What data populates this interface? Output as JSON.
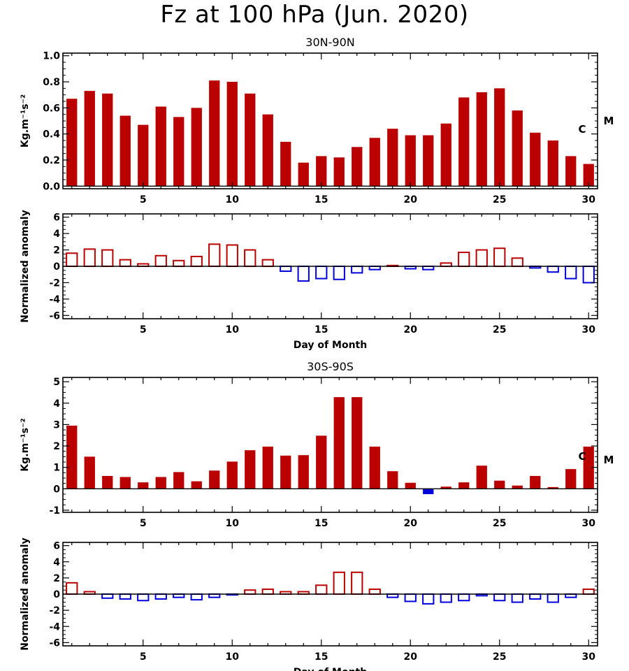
{
  "title": "Fz at 100 hPa (Jun. 2020)",
  "colors": {
    "positive": "#bb0000",
    "negative": "#0000dd",
    "axis": "#000000"
  },
  "chart_data": [
    {
      "type": "bar",
      "title": "30N-90N",
      "xlabel": "",
      "ylabel": "Kg.m⁻¹s⁻²",
      "xlim": [
        0.5,
        30.5
      ],
      "ylim": [
        -0.02,
        1.02
      ],
      "yticks": [
        "0.0",
        "0.2",
        "0.4",
        "0.6",
        "0.8",
        "1.0"
      ],
      "xticks": [
        "5",
        "10",
        "15",
        "20",
        "25",
        "30"
      ],
      "bar_style": "filled",
      "annotations": [
        "C",
        "M"
      ],
      "x": [
        1,
        2,
        3,
        4,
        5,
        6,
        7,
        8,
        9,
        10,
        11,
        12,
        13,
        14,
        15,
        16,
        17,
        18,
        19,
        20,
        21,
        22,
        23,
        24,
        25,
        26,
        27,
        28,
        29,
        30
      ],
      "values": [
        0.67,
        0.73,
        0.71,
        0.54,
        0.47,
        0.61,
        0.53,
        0.6,
        0.81,
        0.8,
        0.71,
        0.55,
        0.34,
        0.18,
        0.23,
        0.22,
        0.3,
        0.37,
        0.44,
        0.39,
        0.39,
        0.48,
        0.68,
        0.72,
        0.75,
        0.58,
        0.41,
        0.35,
        0.23,
        0.17
      ]
    },
    {
      "type": "bar",
      "title": "",
      "xlabel": "Day of Month",
      "ylabel": "Normalized anomaly",
      "xlim": [
        0.5,
        30.5
      ],
      "ylim": [
        -6.4,
        6.4
      ],
      "yticks": [
        "-6",
        "-4",
        "-2",
        "0",
        "2",
        "4",
        "6"
      ],
      "xticks": [
        "5",
        "10",
        "15",
        "20",
        "25",
        "30"
      ],
      "bar_style": "outline",
      "x": [
        1,
        2,
        3,
        4,
        5,
        6,
        7,
        8,
        9,
        10,
        11,
        12,
        13,
        14,
        15,
        16,
        17,
        18,
        19,
        20,
        21,
        22,
        23,
        24,
        25,
        26,
        27,
        28,
        29,
        30
      ],
      "values": [
        1.6,
        2.1,
        2.0,
        0.8,
        0.3,
        1.3,
        0.7,
        1.2,
        2.7,
        2.6,
        2.0,
        0.8,
        -0.6,
        -1.8,
        -1.5,
        -1.6,
        -0.8,
        -0.4,
        0.1,
        -0.3,
        -0.4,
        0.4,
        1.7,
        2.0,
        2.2,
        1.0,
        -0.2,
        -0.7,
        -1.5,
        -2.0
      ]
    },
    {
      "type": "bar",
      "title": "30S-90S",
      "xlabel": "",
      "ylabel": "Kg.m⁻¹s⁻²",
      "xlim": [
        0.5,
        30.5
      ],
      "ylim": [
        -1.1,
        5.2
      ],
      "yticks": [
        "-1",
        "0",
        "1",
        "2",
        "3",
        "4",
        "5"
      ],
      "xticks": [
        "5",
        "10",
        "15",
        "20",
        "25",
        "30"
      ],
      "bar_style": "filled",
      "annotations": [
        "C",
        "M"
      ],
      "x": [
        1,
        2,
        3,
        4,
        5,
        6,
        7,
        8,
        9,
        10,
        11,
        12,
        13,
        14,
        15,
        16,
        17,
        18,
        19,
        20,
        21,
        22,
        23,
        24,
        25,
        26,
        27,
        28,
        29,
        30
      ],
      "values": [
        2.95,
        1.5,
        0.6,
        0.55,
        0.3,
        0.55,
        0.78,
        0.35,
        0.85,
        1.27,
        1.8,
        1.97,
        1.55,
        1.57,
        2.48,
        4.28,
        4.28,
        1.97,
        0.82,
        0.28,
        -0.25,
        0.1,
        0.3,
        1.08,
        0.38,
        0.15,
        0.6,
        0.08,
        0.92,
        1.97
      ]
    },
    {
      "type": "bar",
      "title": "",
      "xlabel": "Day of Month",
      "ylabel": "Normalized anomaly",
      "xlim": [
        0.5,
        30.5
      ],
      "ylim": [
        -6.4,
        6.4
      ],
      "yticks": [
        "-6",
        "-4",
        "-2",
        "0",
        "2",
        "4",
        "6"
      ],
      "xticks": [
        "5",
        "10",
        "15",
        "20",
        "25",
        "30"
      ],
      "bar_style": "outline",
      "x": [
        1,
        2,
        3,
        4,
        5,
        6,
        7,
        8,
        9,
        10,
        11,
        12,
        13,
        14,
        15,
        16,
        17,
        18,
        19,
        20,
        21,
        22,
        23,
        24,
        25,
        26,
        27,
        28,
        29,
        30
      ],
      "values": [
        1.4,
        0.3,
        -0.5,
        -0.6,
        -0.8,
        -0.6,
        -0.4,
        -0.7,
        -0.4,
        -0.1,
        0.5,
        0.6,
        0.3,
        0.3,
        1.1,
        2.7,
        2.7,
        0.6,
        -0.4,
        -0.9,
        -1.2,
        -1.0,
        -0.8,
        -0.2,
        -0.8,
        -1.0,
        -0.6,
        -1.0,
        -0.4,
        0.6
      ]
    }
  ]
}
